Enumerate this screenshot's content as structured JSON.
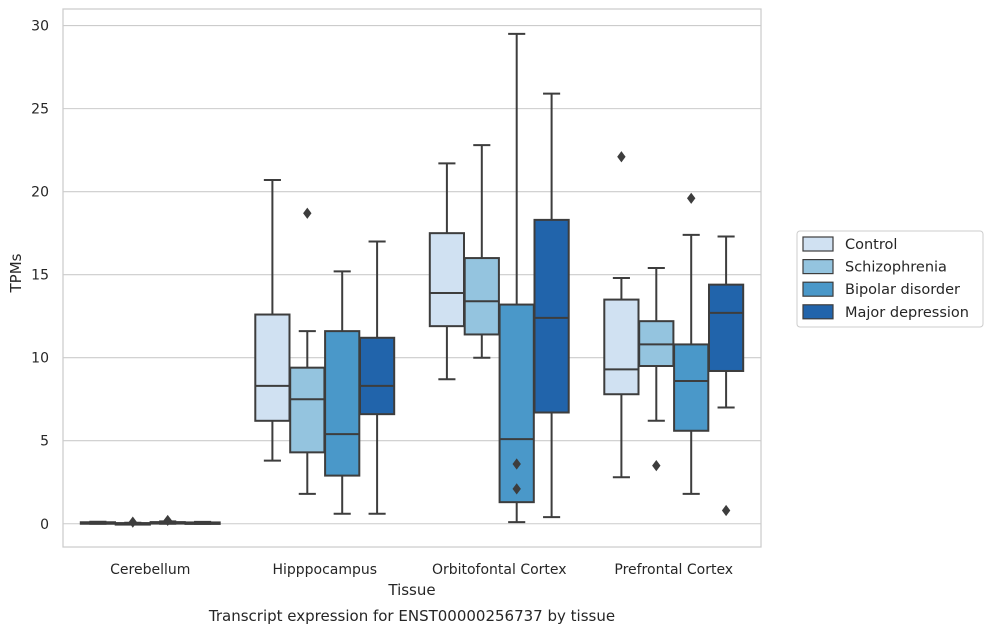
{
  "chart_data": {
    "type": "box",
    "caption": "Transcript expression for ENST00000256737 by tissue",
    "xlabel": "Tissue",
    "ylabel": "TPMs",
    "ylim": [
      -1.4,
      31.0
    ],
    "yticks": [
      0,
      5,
      10,
      15,
      20,
      25,
      30
    ],
    "grid": true,
    "legend_position": "right",
    "categories": [
      "Cerebellum",
      "Hipppocampus",
      "Orbitofontal Cortex",
      "Prefrontal Cortex"
    ],
    "series": [
      {
        "name": "Control",
        "color": "#d0e1f2",
        "boxes": [
          {
            "whislo": 0.0,
            "q1": 0.02,
            "med": 0.05,
            "q3": 0.09,
            "whishi": 0.12,
            "fliers": []
          },
          {
            "whislo": 3.8,
            "q1": 6.2,
            "med": 8.3,
            "q3": 12.6,
            "whishi": 20.7,
            "fliers": []
          },
          {
            "whislo": 8.7,
            "q1": 11.9,
            "med": 13.9,
            "q3": 17.5,
            "whishi": 21.7,
            "fliers": []
          },
          {
            "whislo": 2.8,
            "q1": 7.8,
            "med": 9.3,
            "q3": 13.5,
            "whishi": 14.8,
            "fliers": [
              22.1
            ]
          }
        ]
      },
      {
        "name": "Schizophrenia",
        "color": "#94c4df",
        "boxes": [
          {
            "whislo": 0.0,
            "q1": 0.01,
            "med": 0.02,
            "q3": 0.04,
            "whishi": 0.06,
            "fliers": [
              0.1
            ]
          },
          {
            "whislo": 1.8,
            "q1": 4.3,
            "med": 7.5,
            "q3": 9.4,
            "whishi": 11.6,
            "fliers": [
              18.7
            ]
          },
          {
            "whislo": 10.0,
            "q1": 11.4,
            "med": 13.4,
            "q3": 16.0,
            "whishi": 22.8,
            "fliers": []
          },
          {
            "whislo": 6.2,
            "q1": 9.5,
            "med": 10.8,
            "q3": 12.2,
            "whishi": 15.4,
            "fliers": [
              3.5
            ]
          }
        ]
      },
      {
        "name": "Bipolar disorder",
        "color": "#4a98c9",
        "boxes": [
          {
            "whislo": 0.0,
            "q1": 0.02,
            "med": 0.05,
            "q3": 0.1,
            "whishi": 0.14,
            "fliers": [
              0.2
            ]
          },
          {
            "whislo": 0.6,
            "q1": 2.9,
            "med": 5.4,
            "q3": 11.6,
            "whishi": 15.2,
            "fliers": []
          },
          {
            "whislo": 0.1,
            "q1": 1.3,
            "med": 5.1,
            "q3": 13.2,
            "whishi": 29.5,
            "fliers": [
              3.6,
              2.1
            ]
          },
          {
            "whislo": 1.8,
            "q1": 5.6,
            "med": 8.6,
            "q3": 10.8,
            "whishi": 17.4,
            "fliers": [
              19.6
            ]
          }
        ]
      },
      {
        "name": "Major depression",
        "color": "#2164ab",
        "boxes": [
          {
            "whislo": 0.0,
            "q1": 0.02,
            "med": 0.04,
            "q3": 0.08,
            "whishi": 0.11,
            "fliers": []
          },
          {
            "whislo": 0.6,
            "q1": 6.6,
            "med": 8.3,
            "q3": 11.2,
            "whishi": 17.0,
            "fliers": []
          },
          {
            "whislo": 0.4,
            "q1": 6.7,
            "med": 12.4,
            "q3": 18.3,
            "whishi": 25.9,
            "fliers": []
          },
          {
            "whislo": 7.0,
            "q1": 9.2,
            "med": 12.7,
            "q3": 14.4,
            "whishi": 17.3,
            "fliers": [
              0.8
            ]
          }
        ]
      }
    ]
  }
}
